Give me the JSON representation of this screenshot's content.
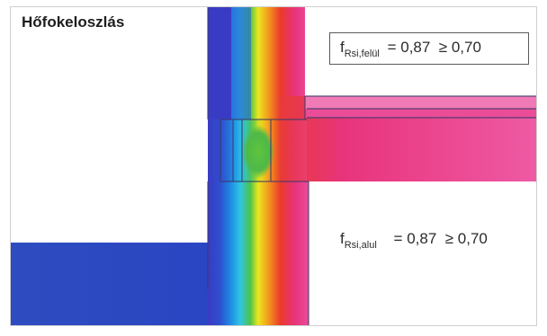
{
  "title": "Hőfokeloszlás",
  "upper": {
    "symbol": "f",
    "subscript": "Rsi,felül",
    "relation": "= 0,87  ≥ 0,70"
  },
  "lower": {
    "symbol": "f",
    "subscript": "Rsi,alul",
    "relation": "= 0,87  ≥ 0,70"
  },
  "colors": {
    "cold": "#2f49c4",
    "mid_blue": "#1e8fe0",
    "cyan": "#2ec7e6",
    "green": "#49c04a",
    "yellow": "#f2e51e",
    "orange": "#f39a1f",
    "red": "#ea3a2a",
    "magenta": "#e83e8c",
    "pink": "#ee4f9b"
  }
}
